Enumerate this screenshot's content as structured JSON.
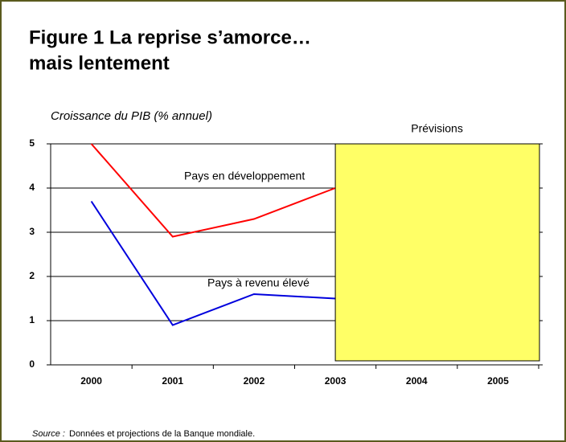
{
  "chart_data": {
    "type": "line",
    "title": [
      "Figure 1  La reprise s’amorce…",
      "mais lentement"
    ],
    "y_label": "Croissance du PIB (% annuel)",
    "categories": [
      "2000",
      "2001",
      "2002",
      "2003",
      "2004",
      "2005"
    ],
    "series": [
      {
        "name": "Pays en développement",
        "color": "#ff0000",
        "values": [
          5.0,
          2.9,
          3.3,
          4.0,
          null,
          null
        ]
      },
      {
        "name": "Pays à revenu élevé",
        "color": "#0000dd",
        "values": [
          3.7,
          0.9,
          1.6,
          1.5,
          null,
          null
        ]
      }
    ],
    "forecast_label": "Prévisions",
    "ylim": [
      0,
      5
    ],
    "yticks": [
      0,
      1,
      2,
      3,
      4,
      5
    ],
    "grid": true,
    "source_label": "Source :",
    "source_text": "Données et projections de la Banque mondiale."
  }
}
